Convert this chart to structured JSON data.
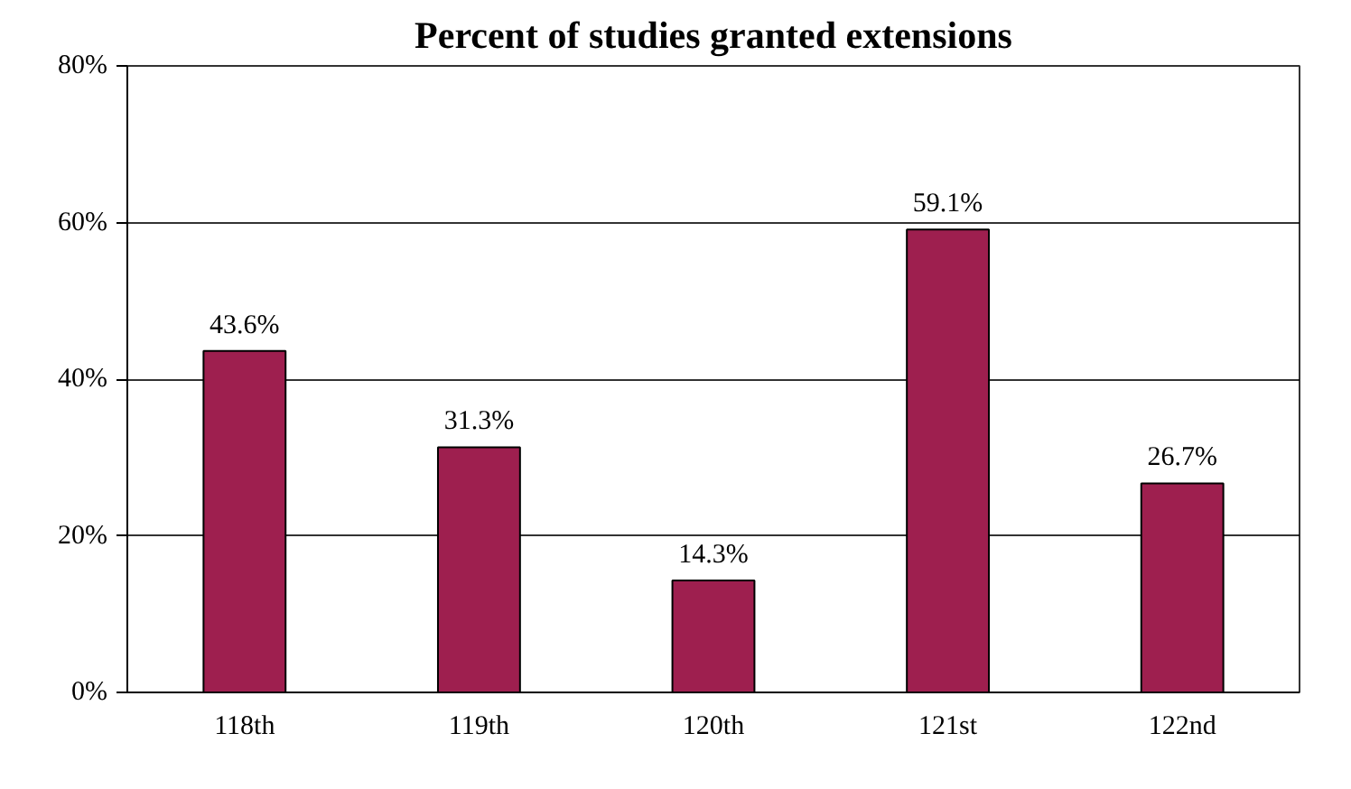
{
  "chart_data": {
    "type": "bar",
    "title": "Percent of studies granted extensions",
    "categories": [
      "118th",
      "119th",
      "120th",
      "121st",
      "122nd"
    ],
    "values": [
      43.6,
      31.3,
      14.3,
      59.1,
      26.7
    ],
    "value_labels": [
      "43.6%",
      "31.3%",
      "14.3%",
      "59.1%",
      "26.7%"
    ],
    "color": "#9e1f4f",
    "ylim": [
      0,
      80
    ],
    "yticks": [
      {
        "value": 0,
        "label": "0%"
      },
      {
        "value": 20,
        "label": "20%"
      },
      {
        "value": 40,
        "label": "40%"
      },
      {
        "value": 60,
        "label": "60%"
      },
      {
        "value": 80,
        "label": "80%"
      }
    ],
    "grid": "y"
  }
}
